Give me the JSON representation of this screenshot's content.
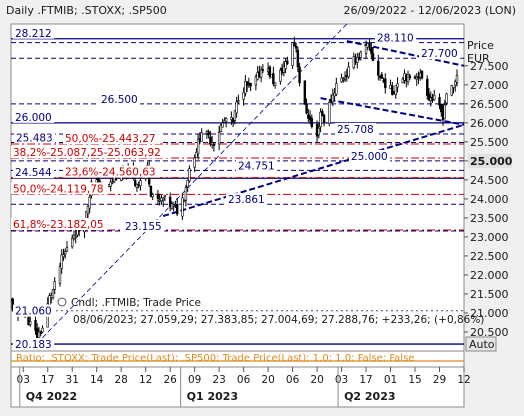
{
  "header": {
    "title": "Daily .FTMIB; .STOXX; .SP500",
    "date_range": "26/09/2022 - 12/06/2023 (LON)"
  },
  "y_axis": {
    "label_line1": "Price",
    "label_line2": "EUR",
    "ticks": [
      "27.500",
      "27.000",
      "26.500",
      "26.000",
      "25.500",
      "25.000",
      "24.500",
      "24.000",
      "23.500",
      "23.000",
      "22.500",
      "22.000",
      "21.500",
      "21.000",
      "20.500"
    ],
    "tick_values": [
      27500,
      27000,
      26500,
      26000,
      25500,
      25000,
      24500,
      24000,
      23500,
      23000,
      22500,
      22000,
      21500,
      21000,
      20500
    ],
    "highlight_tick": "25.000",
    "auto_button": "Auto"
  },
  "x_axis": {
    "ticks": [
      "03",
      "17",
      "31",
      "14",
      "28",
      "12",
      "26",
      "09",
      "23",
      "06",
      "20",
      "06",
      "20",
      "03",
      "17",
      "01",
      "15",
      "29",
      "12",
      "26",
      "10",
      "24",
      "08"
    ],
    "tick_dates": [
      "2022-10-03",
      "2022-10-17",
      "2022-10-31",
      "2022-11-14",
      "2022-11-28",
      "2022-12-12",
      "2022-12-26",
      "2023-01-09",
      "2023-01-23",
      "2023-02-06",
      "2023-02-20",
      "2023-03-06",
      "2023-03-20",
      "2023-04-03",
      "2023-04-17",
      "2023-05-01",
      "2023-05-15",
      "2023-05-29",
      "2023-06-12"
    ],
    "tick_labels_shown": [
      "03",
      "17",
      "31",
      "14",
      "28",
      "12",
      "26",
      "09",
      "23",
      "06",
      "20",
      "06",
      "20",
      "03",
      "17",
      "01",
      "15",
      "29",
      "12"
    ],
    "quarters": [
      {
        "label": "Q4 2022",
        "start": "2022-10-01"
      },
      {
        "label": "Q1 2023",
        "start": "2023-01-01"
      },
      {
        "label": "Q2 2023",
        "start": "2023-04-01"
      }
    ]
  },
  "levels": {
    "solid": [
      {
        "label": "28.212",
        "value": 28212
      },
      {
        "label": "26.000",
        "value": 26000
      },
      {
        "label": "24.544",
        "value": 24544
      },
      {
        "label": "20.183",
        "value": 20183
      }
    ],
    "dashed": [
      {
        "label": "26.500",
        "value": 26500
      },
      {
        "label": "25.483",
        "value": 25483
      },
      {
        "label": "25.708",
        "value": 25708
      },
      {
        "label": "25.000",
        "value": 25000
      },
      {
        "label": "24.751",
        "value": 24751
      },
      {
        "label": "23.861",
        "value": 23861
      },
      {
        "label": "23.155",
        "value": 23155
      },
      {
        "label": "28.110",
        "value": 28110
      },
      {
        "label": "27.700",
        "value": 27700
      }
    ],
    "fibonacci": [
      {
        "label": "50,0%-25.443,27",
        "value": 25443
      },
      {
        "label": "38,2%-25.087,25-25.063,92",
        "value": 25075
      },
      {
        "label": "23,6%-24.560,63",
        "value": 24560
      },
      {
        "label": "50,0%-24.119,78",
        "value": 24120
      },
      {
        "label": "61,8%-23.182,05",
        "value": 23182
      }
    ],
    "extra": [
      {
        "label": "21.060",
        "value": 21060
      }
    ]
  },
  "legend": {
    "candle_text": "Cndl; .FTMIB; Trade Price",
    "ohlc_text": "08/06/2023; 27.059,29; 27.383,85; 27.004,69; 27.288,76; +233,26; (+0,86%)"
  },
  "ratio_panel": {
    "text": "Ratio; .STOXX; Trade Price(Last); .SP500; Trade Price(Last); 1,0; 1,0; False; False"
  },
  "colors": {
    "background": "#ffffff",
    "candle": "#000000",
    "level_blue": "#000080",
    "fib_red": "#cc0000",
    "ratio_orange": "#e08a1e",
    "highlight_tick_bg": "#e0e0e0"
  },
  "chart_data": {
    "type": "candlestick",
    "title": "Daily .FTMIB; .STOXX; .SP500",
    "ylabel": "Price EUR",
    "ylim": [
      20000,
      28600
    ],
    "grid": false,
    "x_start": "2022-09-26",
    "x_end": "2023-06-12",
    "series": [
      {
        "name": ".FTMIB",
        "close_trace": [
          [
            "2022-09-26",
            21300
          ],
          [
            "2022-09-29",
            20900
          ],
          [
            "2022-10-03",
            21100
          ],
          [
            "2022-10-07",
            20700
          ],
          [
            "2022-10-11",
            20400
          ],
          [
            "2022-10-14",
            20600
          ],
          [
            "2022-10-18",
            21400
          ],
          [
            "2022-10-21",
            21700
          ],
          [
            "2022-10-25",
            22400
          ],
          [
            "2022-10-28",
            22700
          ],
          [
            "2022-11-01",
            23100
          ],
          [
            "2022-11-04",
            23200
          ],
          [
            "2022-11-08",
            23600
          ],
          [
            "2022-11-11",
            24400
          ],
          [
            "2022-11-15",
            24400
          ],
          [
            "2022-11-18",
            24300
          ],
          [
            "2022-11-22",
            24400
          ],
          [
            "2022-11-25",
            24600
          ],
          [
            "2022-11-29",
            24600
          ],
          [
            "2022-12-02",
            24700
          ],
          [
            "2022-12-06",
            24400
          ],
          [
            "2022-12-09",
            24500
          ],
          [
            "2022-12-13",
            24800
          ],
          [
            "2022-12-15",
            24200
          ],
          [
            "2022-12-19",
            23900
          ],
          [
            "2022-12-22",
            24000
          ],
          [
            "2022-12-27",
            23800
          ],
          [
            "2022-12-30",
            23700
          ],
          [
            "2023-01-03",
            24100
          ],
          [
            "2023-01-06",
            24800
          ],
          [
            "2023-01-10",
            25300
          ],
          [
            "2023-01-13",
            25800
          ],
          [
            "2023-01-17",
            25600
          ],
          [
            "2023-01-20",
            25500
          ],
          [
            "2023-01-24",
            25900
          ],
          [
            "2023-01-27",
            26100
          ],
          [
            "2023-01-31",
            26000
          ],
          [
            "2023-02-03",
            26700
          ],
          [
            "2023-02-07",
            27000
          ],
          [
            "2023-02-10",
            26900
          ],
          [
            "2023-02-14",
            27200
          ],
          [
            "2023-02-17",
            27500
          ],
          [
            "2023-02-21",
            27300
          ],
          [
            "2023-02-24",
            27000
          ],
          [
            "2023-02-28",
            27400
          ],
          [
            "2023-03-03",
            27600
          ],
          [
            "2023-03-06",
            28100
          ],
          [
            "2023-03-08",
            28000
          ],
          [
            "2023-03-10",
            27100
          ],
          [
            "2023-03-13",
            26400
          ],
          [
            "2023-03-15",
            26200
          ],
          [
            "2023-03-17",
            25900
          ],
          [
            "2023-03-20",
            25600
          ],
          [
            "2023-03-22",
            26300
          ],
          [
            "2023-03-24",
            26100
          ],
          [
            "2023-03-28",
            26600
          ],
          [
            "2023-03-31",
            27000
          ],
          [
            "2023-04-04",
            27200
          ],
          [
            "2023-04-06",
            27300
          ],
          [
            "2023-04-11",
            27700
          ],
          [
            "2023-04-14",
            27800
          ],
          [
            "2023-04-18",
            28000
          ],
          [
            "2023-04-20",
            27800
          ],
          [
            "2023-04-24",
            27300
          ],
          [
            "2023-04-27",
            27100
          ],
          [
            "2023-05-02",
            26800
          ],
          [
            "2023-05-05",
            27100
          ],
          [
            "2023-05-09",
            27300
          ],
          [
            "2023-05-12",
            27100
          ],
          [
            "2023-05-16",
            27300
          ],
          [
            "2023-05-19",
            27200
          ],
          [
            "2023-05-23",
            26700
          ],
          [
            "2023-05-26",
            26600
          ],
          [
            "2023-05-31",
            26200
          ],
          [
            "2023-06-02",
            26800
          ],
          [
            "2023-06-06",
            26900
          ],
          [
            "2023-06-08",
            27289
          ]
        ]
      }
    ],
    "last_candle": {
      "date": "2023-06-08",
      "open": 27059.29,
      "high": 27383.85,
      "low": 27004.69,
      "close": 27288.76,
      "change": 233.26,
      "change_pct": 0.86
    }
  }
}
